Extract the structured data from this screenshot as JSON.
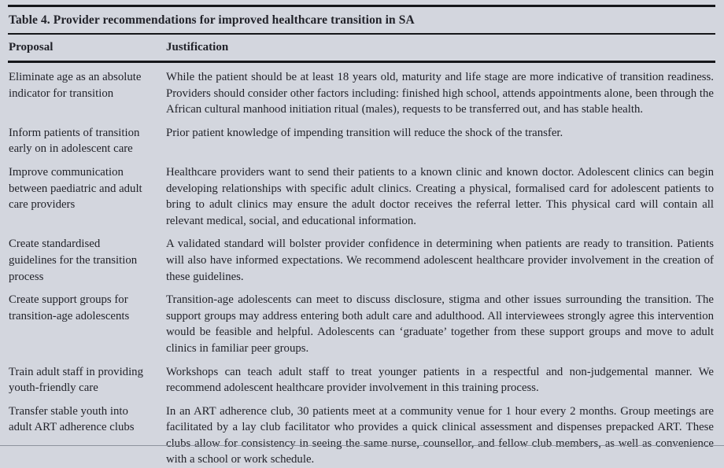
{
  "table": {
    "title": "Table 4. Provider recommendations for improved healthcare transition in SA",
    "columns": {
      "proposal": "Proposal",
      "justification": "Justification"
    },
    "rows": [
      {
        "proposal": "Eliminate age as an absolute indicator for transition",
        "justification": "While the patient should be at least 18 years old, maturity and life stage are more indicative of transition readiness. Providers should consider other factors including: finished high school, attends appointments alone, been through the African cultural manhood initiation ritual (males), requests to be transferred out, and has stable health."
      },
      {
        "proposal": "Inform patients of transition early on in adolescent care",
        "justification": "Prior patient knowledge of impending transition will reduce the shock of the transfer."
      },
      {
        "proposal": "Improve communication between paediatric and adult care providers",
        "justification": "Healthcare providers want to send their patients to a known clinic and known doctor. Adolescent clinics can begin developing relationships with specific adult clinics. Creating a physical, formalised card for adolescent patients to bring to adult clinics may ensure the adult doctor receives the referral letter. This physical card will contain all relevant medical, social, and educational information."
      },
      {
        "proposal": "Create standardised guidelines for the transition process",
        "justification": "A validated standard will bolster provider confidence in determining when patients are ready to transition. Patients will also have informed expectations. We recommend adolescent healthcare provider involvement in the creation of these guidelines."
      },
      {
        "proposal": "Create support groups for transition-age adolescents",
        "justification": "Transition-age adolescents can meet to discuss disclosure, stigma and other issues surrounding the transition. The support groups may address entering both adult care and adulthood. All interviewees strongly agree this intervention would be feasible and helpful. Adolescents can ‘graduate’ together from these support groups and move to adult clinics in familiar peer groups."
      },
      {
        "proposal": "Train adult staff in providing youth-friendly care",
        "justification": "Workshops can teach adult staff to treat younger patients in a respectful and non-judgemental manner. We recommend adolescent healthcare provider involvement in this training process."
      },
      {
        "proposal": "Transfer stable youth into adult ART adherence clubs",
        "justification": "In an ART adherence club, 30 patients meet at a community venue for 1 hour every 2 months. Group meetings are facilitated by a lay club facilitator who provides a quick clinical assessment and dispenses prepacked ART. These clubs allow for consistency in seeing the same nurse, counsellor, and fellow club members, as well as convenience with a school or work schedule."
      }
    ],
    "colors": {
      "background": "#d3d6de",
      "text": "#22232a",
      "rule": "#15161a"
    }
  }
}
